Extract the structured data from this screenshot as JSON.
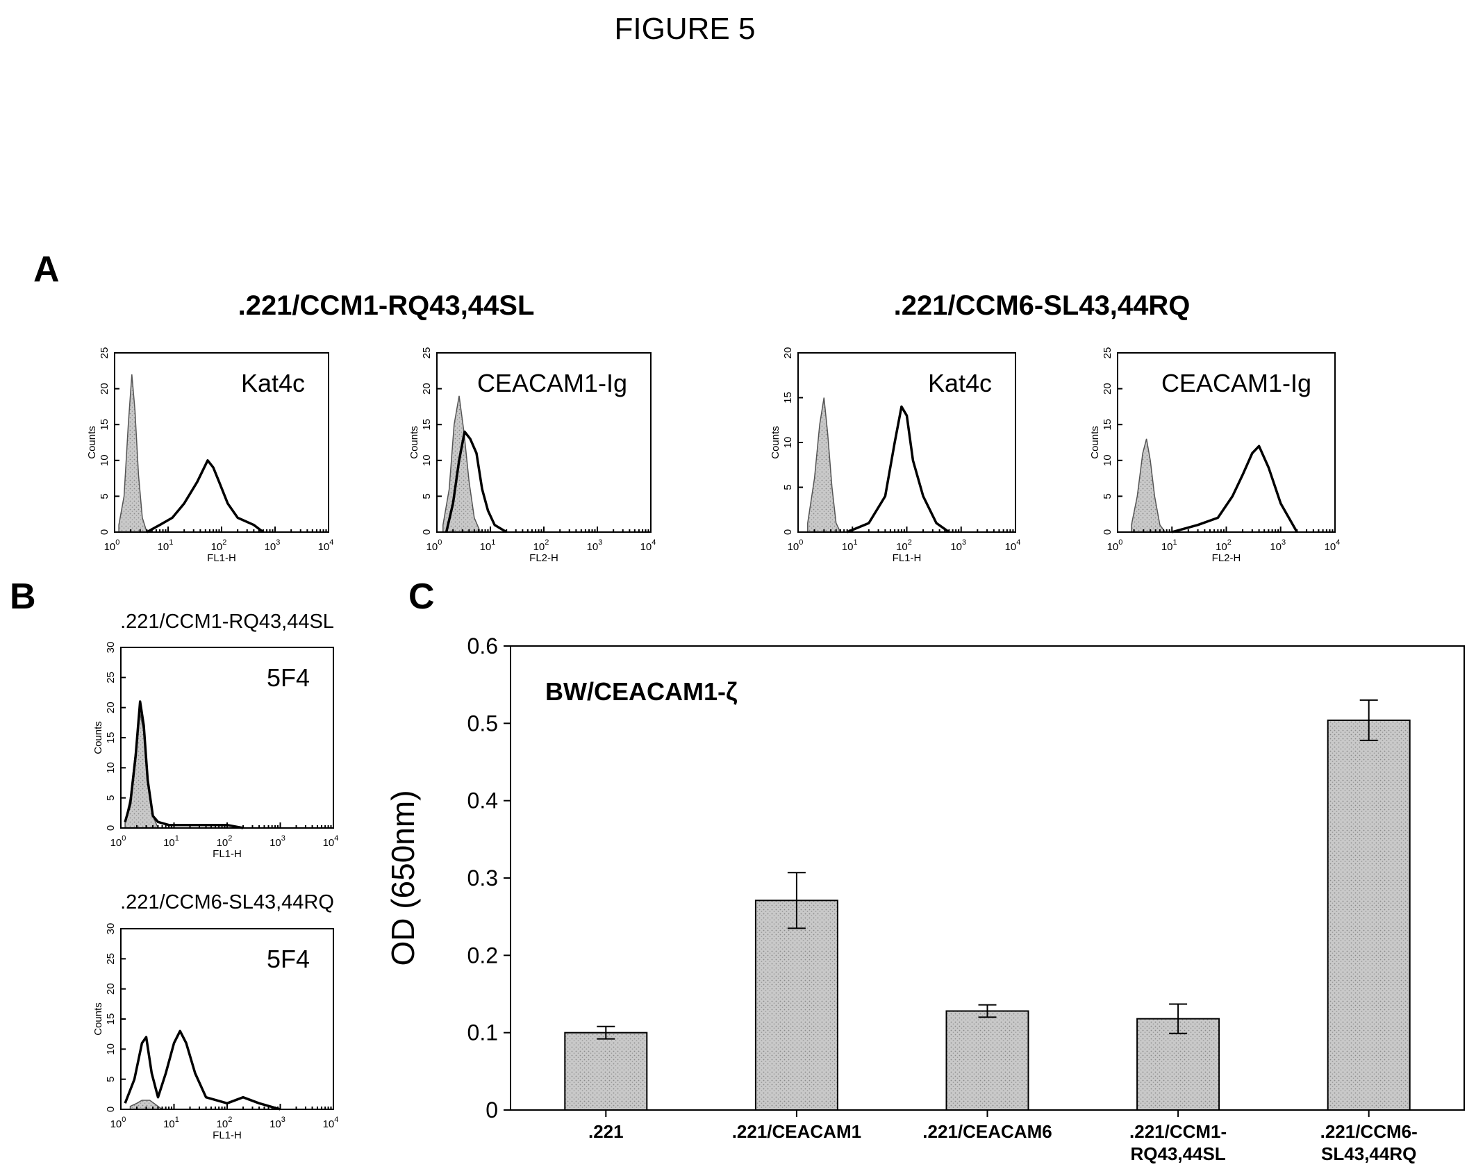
{
  "figure_title": "FIGURE 5",
  "panel_labels": {
    "a": "A",
    "b": "B",
    "c": "C"
  },
  "colors": {
    "bar_fill": "#c8c8c8",
    "stain_line": "#000000",
    "isotype_fill": "#c8c8c8"
  },
  "chart_data": [
    {
      "type": "area",
      "panel": "A",
      "group": ".221/CCM1-RQ43,44SL",
      "marker": "Kat4c",
      "xlabel": "FL1-H",
      "ylabel": "Counts",
      "xscale": "log",
      "xlim": [
        1,
        10000
      ],
      "ylim": [
        0,
        25
      ],
      "yticks": [
        "0",
        "5",
        "10",
        "15",
        "20",
        "25"
      ],
      "xticks": [
        "10",
        "10",
        "10",
        "10",
        "10"
      ],
      "xtick_exponents": [
        "0",
        "1",
        "2",
        "3",
        "4"
      ],
      "series": [
        {
          "name": "isotype",
          "x": [
            1.2,
            1.5,
            1.8,
            2.1,
            2.4,
            2.8,
            3.3,
            4
          ],
          "y": [
            1,
            5,
            15,
            22,
            17,
            8,
            2,
            0
          ]
        },
        {
          "name": "stain",
          "x": [
            4,
            7,
            12,
            20,
            35,
            55,
            70,
            90,
            130,
            200,
            400,
            600
          ],
          "y": [
            0,
            1,
            2,
            4,
            7,
            10,
            9,
            7,
            4,
            2,
            1,
            0
          ]
        }
      ]
    },
    {
      "type": "area",
      "panel": "A",
      "group": ".221/CCM1-RQ43,44SL",
      "marker": "CEACAM1-Ig",
      "xlabel": "FL2-H",
      "ylabel": "Counts",
      "xscale": "log",
      "xlim": [
        1,
        10000
      ],
      "ylim": [
        0,
        25
      ],
      "yticks": [
        "0",
        "5",
        "10",
        "15",
        "20",
        "25"
      ],
      "xticks": [
        "10",
        "10",
        "10",
        "10",
        "10"
      ],
      "xtick_exponents": [
        "0",
        "1",
        "2",
        "3",
        "4"
      ],
      "series": [
        {
          "name": "isotype",
          "x": [
            1.3,
            1.7,
            2.1,
            2.6,
            3.2,
            4,
            5,
            6.5
          ],
          "y": [
            1,
            6,
            15,
            19,
            14,
            7,
            2,
            0
          ]
        },
        {
          "name": "stain",
          "x": [
            1.5,
            2,
            2.6,
            3.3,
            4.2,
            5.5,
            7,
            9,
            12,
            20
          ],
          "y": [
            0,
            4,
            10,
            14,
            13,
            11,
            6,
            3,
            1,
            0
          ]
        }
      ]
    },
    {
      "type": "area",
      "panel": "A",
      "group": ".221/CCM6-SL43,44RQ",
      "marker": "Kat4c",
      "xlabel": "FL1-H",
      "ylabel": "Counts",
      "xscale": "log",
      "xlim": [
        1,
        10000
      ],
      "ylim": [
        0,
        20
      ],
      "yticks": [
        "0",
        "5",
        "10",
        "15",
        "20"
      ],
      "xticks": [
        "10",
        "10",
        "10",
        "10",
        "10"
      ],
      "xtick_exponents": [
        "0",
        "1",
        "2",
        "3",
        "4"
      ],
      "series": [
        {
          "name": "isotype",
          "x": [
            1.5,
            2,
            2.5,
            3,
            3.5,
            4.2,
            5,
            6
          ],
          "y": [
            1,
            6,
            12,
            15,
            11,
            5,
            1,
            0
          ]
        },
        {
          "name": "stain",
          "x": [
            8,
            20,
            40,
            60,
            80,
            100,
            130,
            200,
            350,
            600
          ],
          "y": [
            0,
            1,
            4,
            10,
            14,
            13,
            8,
            4,
            1,
            0
          ]
        }
      ]
    },
    {
      "type": "area",
      "panel": "A",
      "group": ".221/CCM6-SL43,44RQ",
      "marker": "CEACAM1-Ig",
      "xlabel": "FL2-H",
      "ylabel": "Counts",
      "xscale": "log",
      "xlim": [
        1,
        10000
      ],
      "ylim": [
        0,
        25
      ],
      "yticks": [
        "0",
        "5",
        "10",
        "15",
        "20",
        "25"
      ],
      "xticks": [
        "10",
        "10",
        "10",
        "10",
        "10"
      ],
      "xtick_exponents": [
        "0",
        "1",
        "2",
        "3",
        "4"
      ],
      "series": [
        {
          "name": "isotype",
          "x": [
            1.8,
            2.3,
            2.9,
            3.4,
            4,
            4.8,
            6,
            7.5
          ],
          "y": [
            1,
            5,
            11,
            13,
            10,
            5,
            1,
            0
          ]
        },
        {
          "name": "stain",
          "x": [
            10,
            30,
            70,
            130,
            200,
            300,
            400,
            600,
            1000,
            2000
          ],
          "y": [
            0,
            1,
            2,
            5,
            8,
            11,
            12,
            9,
            4,
            0
          ]
        }
      ]
    },
    {
      "type": "area",
      "panel": "B",
      "title": ".221/CCM1-RQ43,44SL",
      "marker": "5F4",
      "xlabel": "FL1-H",
      "ylabel": "Counts",
      "xscale": "log",
      "xlim": [
        1,
        10000
      ],
      "ylim": [
        0,
        30
      ],
      "yticks": [
        "0",
        "5",
        "10",
        "15",
        "20",
        "25",
        "30"
      ],
      "xticks": [
        "10",
        "10",
        "10",
        "10",
        "10"
      ],
      "xtick_exponents": [
        "0",
        "1",
        "2",
        "3",
        "4"
      ],
      "series": [
        {
          "name": "isotype",
          "x": [
            1.2,
            1.5,
            1.9,
            2.3,
            2.7,
            3.2,
            4,
            5
          ],
          "y": [
            1,
            5,
            13,
            19,
            16,
            8,
            2,
            0
          ]
        },
        {
          "name": "stain",
          "x": [
            1.2,
            1.5,
            1.9,
            2.3,
            2.7,
            3.2,
            4,
            5,
            8,
            100,
            200
          ],
          "y": [
            1,
            4,
            12,
            21,
            17,
            8,
            2,
            1,
            0.5,
            0.5,
            0
          ]
        }
      ]
    },
    {
      "type": "area",
      "panel": "B",
      "title": ".221/CCM6-SL43,44RQ",
      "marker": "5F4",
      "xlabel": "FL1-H",
      "ylabel": "Counts",
      "xscale": "log",
      "xlim": [
        1,
        10000
      ],
      "ylim": [
        0,
        30
      ],
      "yticks": [
        "0",
        "5",
        "10",
        "15",
        "20",
        "25",
        "30"
      ],
      "xticks": [
        "10",
        "10",
        "10",
        "10",
        "10"
      ],
      "xtick_exponents": [
        "0",
        "1",
        "2",
        "3",
        "4"
      ],
      "series": [
        {
          "name": "isotype",
          "x": [
            1.5,
            2,
            2.5,
            3,
            3.5,
            4.2,
            5,
            6
          ],
          "y": [
            0.5,
            1,
            1.5,
            1.5,
            1.5,
            1,
            0.5,
            0
          ]
        },
        {
          "name": "stain",
          "x": [
            1.2,
            1.8,
            2.5,
            3,
            3.8,
            5,
            7,
            10,
            13,
            17,
            25,
            40,
            100,
            200,
            400,
            1000
          ],
          "y": [
            1,
            5,
            11,
            12,
            6,
            2,
            6,
            11,
            13,
            11,
            6,
            2,
            1,
            2,
            1,
            0
          ]
        }
      ]
    },
    {
      "type": "bar",
      "panel": "C",
      "title": "BW/CEACAM1-ζ",
      "ylabel": "OD (650nm)",
      "ylim": [
        0,
        0.6
      ],
      "yticks": [
        "0",
        "0.1",
        "0.2",
        "0.3",
        "0.4",
        "0.5",
        "0.6"
      ],
      "categories": [
        [
          ".221"
        ],
        [
          ".221/CEACAM1"
        ],
        [
          ".221/CEACAM6"
        ],
        [
          ".221/CCM1-",
          "RQ43,44SL"
        ],
        [
          ".221/CCM6-",
          "SL43,44RQ"
        ]
      ],
      "values": [
        0.1,
        0.271,
        0.128,
        0.118,
        0.504
      ],
      "errors": [
        0.008,
        0.036,
        0.008,
        0.019,
        0.026
      ]
    }
  ]
}
